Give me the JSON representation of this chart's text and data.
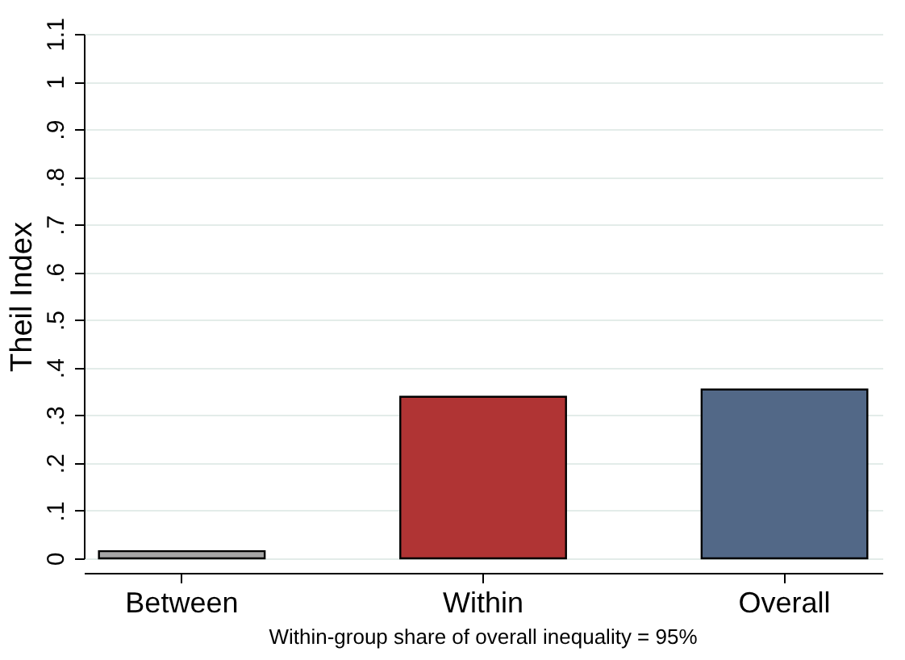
{
  "chart_data": {
    "type": "bar",
    "ylabel": "Theil Index",
    "categories": [
      "Between",
      "Within",
      "Overall"
    ],
    "values": [
      0.015,
      0.339,
      0.354
    ],
    "colors": [
      "#a6a6a6",
      "#b03434",
      "#526887"
    ],
    "ylim": [
      0,
      1.1
    ],
    "yticks": [
      0,
      {
        "value": 0.1,
        "label": ".1"
      },
      {
        "value": 0.2,
        "label": ".2"
      },
      {
        "value": 0.3,
        "label": ".3"
      },
      {
        "value": 0.4,
        "label": ".4"
      },
      {
        "value": 0.5,
        "label": ".5"
      },
      {
        "value": 0.6,
        "label": ".6"
      },
      {
        "value": 0.7,
        "label": ".7"
      },
      {
        "value": 0.8,
        "label": ".8"
      },
      {
        "value": 0.9,
        "label": ".9"
      },
      1,
      {
        "value": 1.1,
        "label": "1.1"
      }
    ],
    "grid": "y",
    "annotations": [
      "Within-group share of overall inequality = 95%"
    ]
  }
}
